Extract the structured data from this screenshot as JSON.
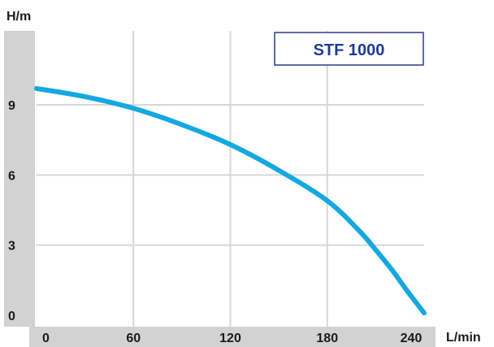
{
  "chart_data": {
    "type": "line",
    "title": "STF 1000",
    "xlabel": "L/min",
    "ylabel": "H/m",
    "xlim": [
      0,
      240
    ],
    "ylim": [
      0,
      9.7
    ],
    "x_ticks": [
      0,
      60,
      120,
      180,
      240
    ],
    "y_ticks": [
      0,
      3,
      6,
      9
    ],
    "grid": true,
    "legend": "top-right",
    "series": [
      {
        "name": "STF 1000",
        "color": "#14a8e0",
        "x": [
          0,
          30,
          60,
          90,
          120,
          150,
          180,
          200,
          210,
          220,
          230,
          240
        ],
        "y": [
          9.7,
          9.35,
          8.85,
          8.15,
          7.3,
          6.2,
          4.9,
          3.6,
          2.8,
          1.95,
          1.0,
          0.1
        ]
      }
    ]
  },
  "colors": {
    "axis_band": "#d2d2d2",
    "grid": "#d7d7d7",
    "legend_border": "#2a3a8c",
    "legend_text": "#1e3a9a",
    "curve": "#14a8e0",
    "text": "#1a1a1a"
  }
}
